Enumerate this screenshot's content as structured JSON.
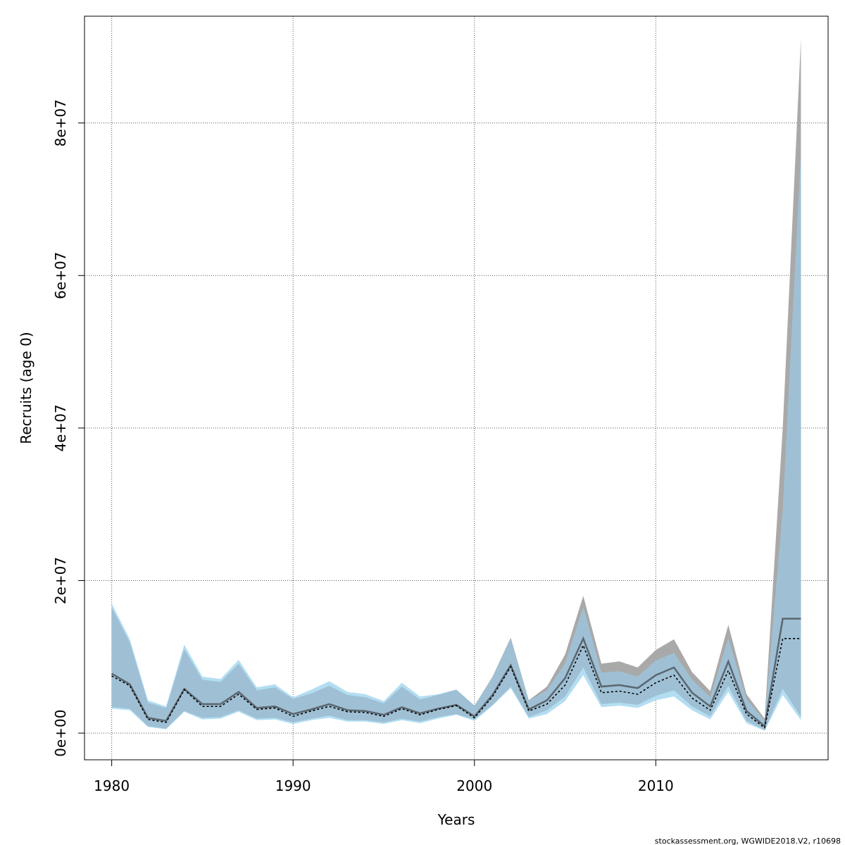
{
  "chart_data": {
    "type": "area",
    "xlabel": "Years",
    "ylabel": "Recruits (age 0)",
    "xlim": [
      1978.5,
      2019.5
    ],
    "ylim": [
      -3500000,
      94000000
    ],
    "x_ticks": [
      1980,
      1990,
      2000,
      2010
    ],
    "x_tick_labels": [
      "1980",
      "1990",
      "2000",
      "2010"
    ],
    "y_ticks": [
      0,
      20000000,
      40000000,
      60000000,
      80000000
    ],
    "y_tick_labels": [
      "0e+00",
      "2e+07",
      "4e+07",
      "6e+07",
      "8e+07"
    ],
    "grid": true,
    "colors": {
      "grey_band": "#a9a9a9",
      "blue_band": "#a6d8f0",
      "overlap_band": "#9fc0d4",
      "grey_line": "#5b6670",
      "blue_line": "#000000"
    },
    "x": [
      1980,
      1981,
      1982,
      1983,
      1984,
      1985,
      1986,
      1987,
      1988,
      1989,
      1990,
      1991,
      1992,
      1993,
      1994,
      1995,
      1996,
      1997,
      1998,
      1999,
      2000,
      2001,
      2002,
      2003,
      2004,
      2005,
      2006,
      2007,
      2008,
      2009,
      2010,
      2011,
      2012,
      2013,
      2014,
      2015,
      2016,
      2017,
      2018
    ],
    "series": [
      {
        "values": [
          7800000,
          6400000,
          2000000,
          1600000,
          5800000,
          3800000,
          3800000,
          5400000,
          3300000,
          3500000,
          2500000,
          3100000,
          3800000,
          3000000,
          2900000,
          2400000,
          3400000,
          2600000,
          3200000,
          3700000,
          2200000,
          5000000,
          8900000,
          3100000,
          4300000,
          7200000,
          12400000,
          6100000,
          6300000,
          5900000,
          7600000,
          8600000,
          5300000,
          3500000,
          9400000,
          2900000,
          900000,
          15000000,
          15000000
        ],
        "lower": [
          3400000,
          3200000,
          900000,
          600000,
          2900000,
          2000000,
          2100000,
          3000000,
          1900000,
          2000000,
          1400000,
          1900000,
          2300000,
          1700000,
          1700000,
          1400000,
          1900000,
          1500000,
          2100000,
          2500000,
          1800000,
          3700000,
          6100000,
          2100000,
          3000000,
          4800000,
          8600000,
          3800000,
          4000000,
          3700000,
          4900000,
          5600000,
          3500000,
          2200000,
          6200000,
          1600000,
          400000,
          5800000,
          2100000
        ],
        "upper": [
          16500000,
          11900000,
          4000000,
          3300000,
          11000000,
          7000000,
          6700000,
          9100000,
          5600000,
          6000000,
          4500000,
          5200000,
          6200000,
          5000000,
          4700000,
          3900000,
          6100000,
          4400000,
          5000000,
          5700000,
          3600000,
          7400000,
          12500000,
          4300000,
          6100000,
          10300000,
          18000000,
          9100000,
          9400000,
          8600000,
          10900000,
          12300000,
          8000000,
          5500000,
          14200000,
          5100000,
          1900000,
          40000000,
          91000000
        ]
      },
      {
        "values": [
          7500000,
          6200000,
          1800000,
          1400000,
          5700000,
          3500000,
          3500000,
          5100000,
          3100000,
          3300000,
          2200000,
          2900000,
          3500000,
          2800000,
          2700000,
          2200000,
          3200000,
          2400000,
          3100000,
          3600000,
          2000000,
          4800000,
          8700000,
          2900000,
          3800000,
          6300000,
          11500000,
          5300000,
          5500000,
          5100000,
          6600000,
          7600000,
          4600000,
          3000000,
          8200000,
          2500000,
          700000,
          12400000,
          12400000
        ],
        "lower": [
          3200000,
          3000000,
          800000,
          500000,
          2800000,
          1800000,
          1900000,
          2800000,
          1700000,
          1800000,
          1200000,
          1700000,
          2000000,
          1500000,
          1500000,
          1200000,
          1700000,
          1300000,
          1900000,
          2400000,
          1600000,
          3600000,
          5900000,
          1900000,
          2500000,
          4200000,
          7600000,
          3400000,
          3600000,
          3300000,
          4300000,
          4800000,
          3000000,
          1800000,
          5400000,
          1300000,
          300000,
          5000000,
          1700000
        ],
        "upper": [
          17000000,
          12300000,
          4300000,
          3500000,
          11600000,
          7400000,
          7100000,
          9600000,
          6000000,
          6400000,
          4700000,
          5700000,
          6800000,
          5400000,
          5100000,
          4200000,
          6600000,
          4800000,
          5100000,
          5700000,
          3600000,
          7300000,
          12300000,
          4200000,
          5600000,
          9100000,
          16500000,
          7900000,
          8100000,
          7400000,
          9500000,
          10500000,
          7000000,
          4700000,
          12400000,
          4400000,
          1600000,
          29000000,
          76000000
        ]
      }
    ]
  },
  "footer_text": "stockassessment.org, WGWIDE2018.V2, r10698"
}
